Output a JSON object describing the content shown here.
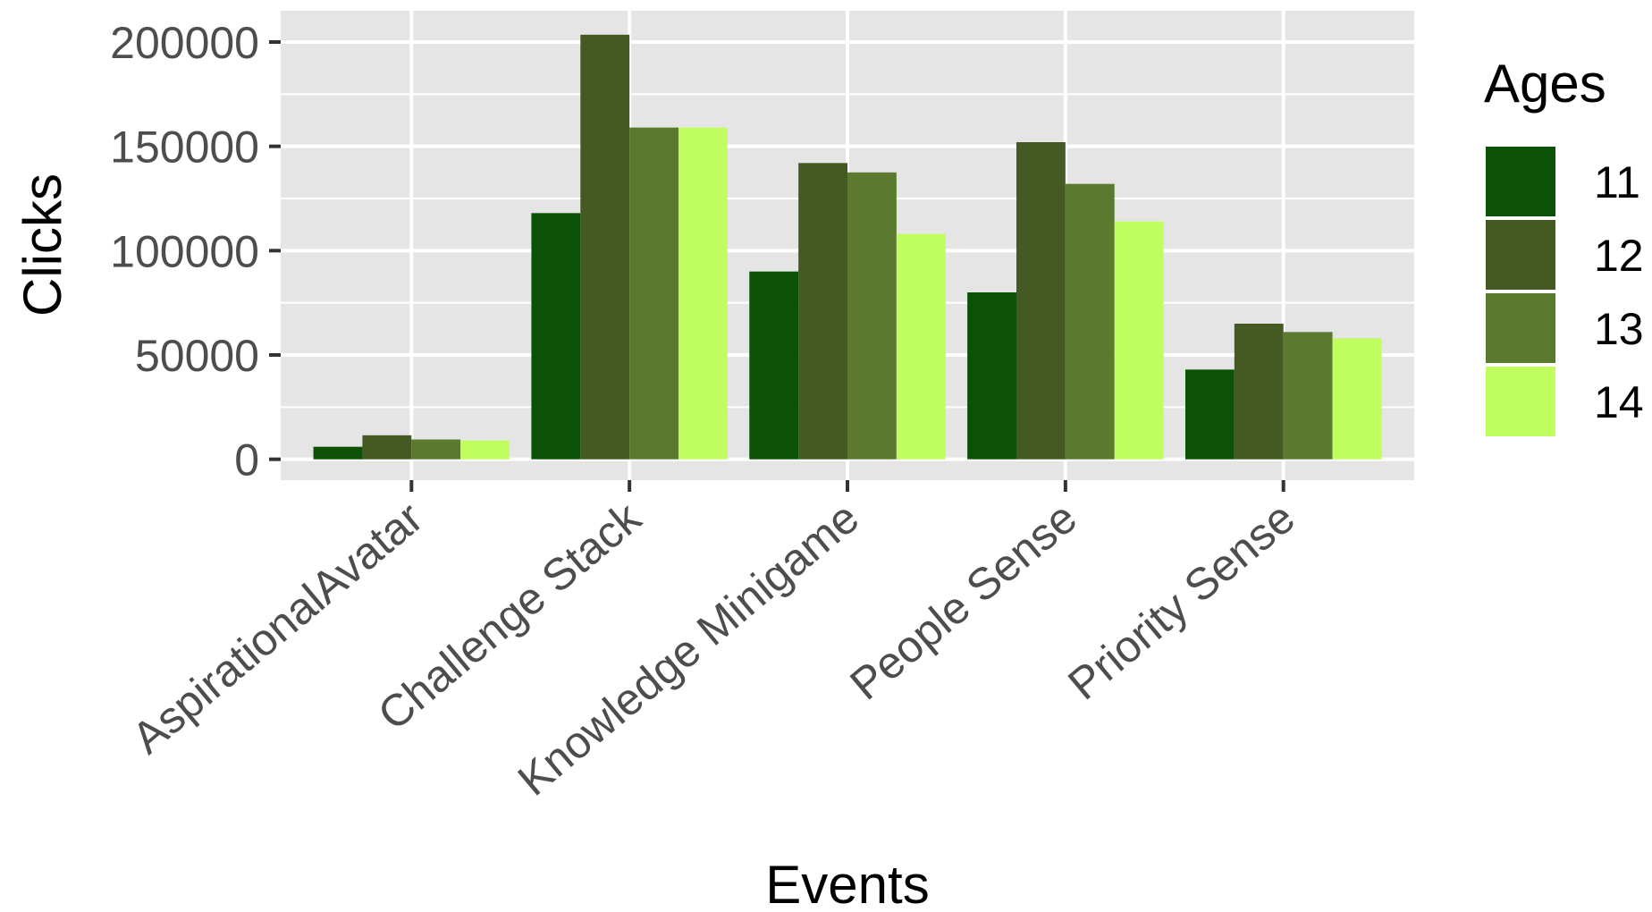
{
  "chart_data": {
    "type": "bar",
    "title": "",
    "xlabel": "Events",
    "ylabel": "Clicks",
    "categories": [
      "AspirationalAvatar",
      "Challenge Stack",
      "Knowledge Minigame",
      "People Sense",
      "Priority Sense"
    ],
    "series": [
      {
        "name": "11",
        "color": "#0b5206",
        "values": [
          6000,
          118000,
          90000,
          80000,
          43000
        ]
      },
      {
        "name": "12",
        "color": "#445a22",
        "values": [
          11500,
          203500,
          142000,
          152000,
          65000
        ]
      },
      {
        "name": "13",
        "color": "#5c7a2f",
        "values": [
          9500,
          159000,
          137500,
          132000,
          61000
        ]
      },
      {
        "name": "14",
        "color": "#c0fd5e",
        "values": [
          9000,
          159000,
          108000,
          114000,
          58000
        ]
      }
    ],
    "yticks": [
      0,
      50000,
      100000,
      150000,
      200000
    ],
    "ylim": [
      -10000,
      215000
    ],
    "grid": true,
    "legend": {
      "title": "Ages",
      "position": "right"
    },
    "panel_background": "#e5e5e5",
    "grid_color": "#ffffff"
  }
}
